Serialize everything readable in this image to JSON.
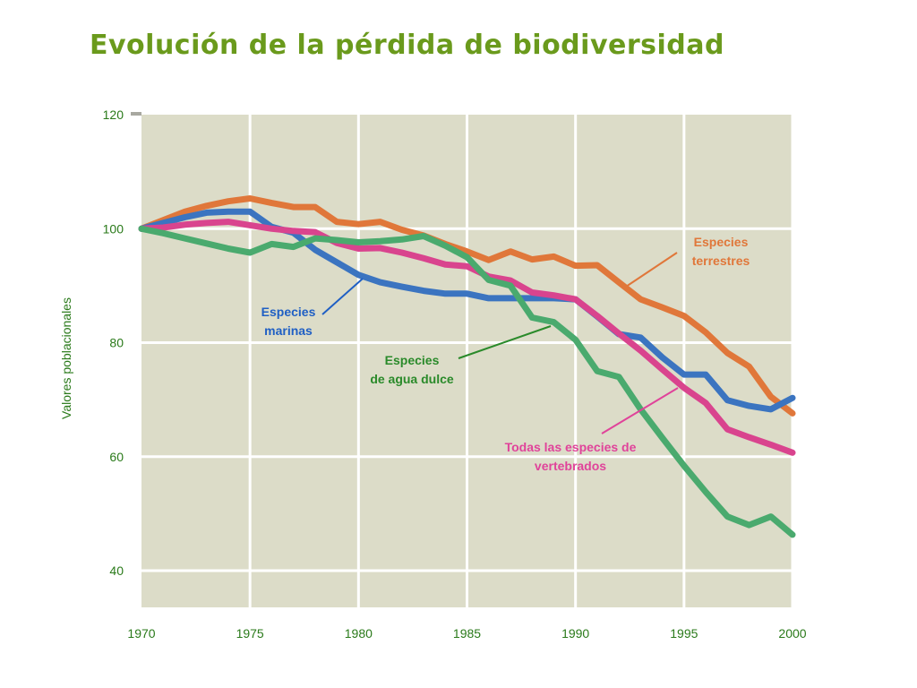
{
  "title": "Evolución de la pérdida de biodiversidad",
  "chart_data": {
    "type": "line",
    "title": "Evolución de la pérdida de biodiversidad",
    "xlabel": "",
    "ylabel": "Valores poblacionales",
    "xlim": [
      1970,
      2000
    ],
    "ylim": [
      33,
      120
    ],
    "xticks": [
      1970,
      1975,
      1980,
      1985,
      1990,
      1995,
      2000
    ],
    "yticks": [
      40,
      60,
      80,
      100,
      120
    ],
    "grid": true,
    "legend": "annotations",
    "series": [
      {
        "key": "terrestres",
        "label_lines": [
          "Especies",
          "terrestres"
        ],
        "color": "#e0773a",
        "x": [
          1970,
          1971,
          1972,
          1973,
          1974,
          1975,
          1976,
          1977,
          1978,
          1979,
          1980,
          1981,
          1982,
          1983,
          1984,
          1985,
          1986,
          1987,
          1988,
          1989,
          1990,
          1991,
          1992,
          1993,
          1994,
          1995,
          1996,
          1997,
          1998,
          1999,
          2000
        ],
        "values": [
          100,
          101.5,
          103,
          104,
          104.8,
          105.3,
          104.5,
          103.8,
          103.8,
          101.2,
          100.8,
          101.2,
          99.8,
          98.8,
          97.3,
          96,
          94.5,
          96,
          94.6,
          95.1,
          93.5,
          93.6,
          90.6,
          87.6,
          86.2,
          84.7,
          81.8,
          78.2,
          75.8,
          70.5,
          67.6
        ]
      },
      {
        "key": "marinas",
        "label_lines": [
          "Especies",
          "marinas"
        ],
        "color": "#3b74c0",
        "x": [
          1970,
          1971,
          1972,
          1973,
          1974,
          1975,
          1976,
          1977,
          1978,
          1979,
          1980,
          1981,
          1982,
          1983,
          1984,
          1985,
          1986,
          1987,
          1988,
          1989,
          1990,
          1991,
          1992,
          1993,
          1994,
          1995,
          1996,
          1997,
          1998,
          1999,
          2000
        ],
        "values": [
          100,
          101,
          102,
          102.8,
          103,
          103,
          100.3,
          99.3,
          96.3,
          94.1,
          91.9,
          90.6,
          89.8,
          89.1,
          88.6,
          88.6,
          87.8,
          87.8,
          87.8,
          87.8,
          87.6,
          84.6,
          81.5,
          80.9,
          77.4,
          74.4,
          74.4,
          69.9,
          68.9,
          68.3,
          70.3
        ]
      },
      {
        "key": "todas",
        "label_lines": [
          "Todas las especies de",
          "vertebrados"
        ],
        "color": "#d9448e",
        "x": [
          1970,
          1971,
          1972,
          1973,
          1974,
          1975,
          1976,
          1977,
          1978,
          1979,
          1980,
          1981,
          1982,
          1983,
          1984,
          1985,
          1986,
          1987,
          1988,
          1989,
          1990,
          1991,
          1992,
          1993,
          1994,
          1995,
          1996,
          1997,
          1998,
          1999,
          2000
        ],
        "values": [
          100,
          100.2,
          100.7,
          101,
          101.2,
          100.6,
          100,
          99.6,
          99.4,
          97.5,
          96.5,
          96.6,
          95.8,
          94.8,
          93.7,
          93.4,
          91.6,
          90.9,
          88.8,
          88.3,
          87.6,
          84.7,
          81.6,
          78.6,
          75.3,
          72.1,
          69.4,
          64.8,
          63.4,
          62.1,
          60.7
        ]
      },
      {
        "key": "dulce",
        "label_lines": [
          "Especies",
          "de agua dulce"
        ],
        "color": "#4aaa6e",
        "x": [
          1970,
          1971,
          1972,
          1973,
          1974,
          1975,
          1976,
          1977,
          1978,
          1979,
          1980,
          1981,
          1982,
          1983,
          1984,
          1985,
          1986,
          1987,
          1988,
          1989,
          1990,
          1991,
          1992,
          1993,
          1994,
          1995,
          1996,
          1997,
          1998,
          1999,
          2000
        ],
        "values": [
          100,
          99.2,
          98.3,
          97.4,
          96.5,
          95.8,
          97.3,
          96.8,
          98.3,
          98,
          97.6,
          97.8,
          98.1,
          98.7,
          97,
          95,
          91,
          90,
          84.4,
          83.6,
          80.5,
          75,
          74,
          68.3,
          63.3,
          58.4,
          53.8,
          49.5,
          48,
          49.5,
          46.3
        ]
      }
    ]
  },
  "annotations": [
    {
      "series": "terrestres",
      "text_lines": [
        "Especies",
        "terrestres"
      ],
      "color": "#e0773a"
    },
    {
      "series": "marinas",
      "text_lines": [
        "Especies",
        "marinas"
      ],
      "color": "#1f5fc4"
    },
    {
      "series": "dulce",
      "text_lines": [
        "Especies",
        "de agua dulce"
      ],
      "color": "#2a8a2a"
    },
    {
      "series": "todas",
      "text_lines": [
        "Todas las especies de",
        "vertebrados"
      ],
      "color": "#e0439a"
    }
  ],
  "colors": {
    "plot_background": "#dcdcc8",
    "grid": "#ffffff",
    "title": "#6a9a1c",
    "tick_text": "#2a7a1a"
  }
}
